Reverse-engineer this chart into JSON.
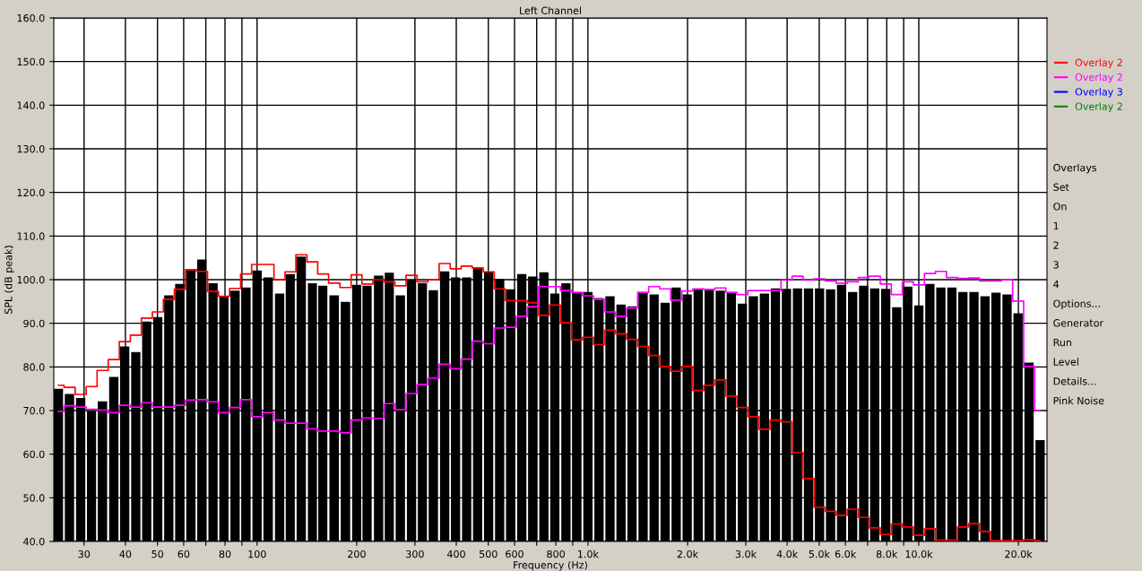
{
  "chart_data": {
    "type": "bar",
    "title": "Left Channel",
    "xlabel": "Frequency (Hz)",
    "ylabel": "SPL (dB peak)",
    "x": [
      25.1,
      27.1,
      29.3,
      31.6,
      34.1,
      36.9,
      39.8,
      43.0,
      46.4,
      50.1,
      54.1,
      58.4,
      63.1,
      68.1,
      73.6,
      79.4,
      85.8,
      92.6,
      100,
      108,
      117,
      126,
      136,
      147,
      158,
      171,
      185,
      200,
      215,
      233,
      251,
      271,
      293,
      316,
      341,
      369,
      398,
      430,
      464,
      501,
      541,
      584,
      631,
      681,
      736,
      794,
      858,
      926,
      1000,
      1080,
      1166,
      1259,
      1359,
      1468,
      1585,
      1711,
      1848,
      1995,
      2154,
      2326,
      2512,
      2712,
      2929,
      3162,
      3415,
      3687,
      3981,
      4299,
      4642,
      5012,
      5412,
      5843,
      6310,
      6813,
      7356,
      7943,
      8577,
      9261,
      10000,
      10800,
      11660,
      12590,
      13590,
      14680,
      15850,
      17110,
      18480,
      19950,
      21540,
      23260
    ],
    "series": [
      {
        "color": "#000000",
        "values": [
          75.0,
          73.8,
          72.9,
          69.9,
          72.1,
          77.7,
          84.7,
          83.4,
          90.4,
          91.4,
          96.4,
          99.0,
          102.2,
          104.6,
          99.2,
          96.2,
          97.5,
          98.2,
          102.1,
          100.5,
          96.8,
          101.3,
          105.3,
          99.2,
          98.6,
          96.4,
          94.9,
          98.8,
          98.6,
          100.9,
          101.6,
          96.4,
          100.0,
          99.2,
          97.6,
          101.9,
          100.5,
          100.5,
          102.6,
          101.8,
          100.2,
          97.8,
          101.3,
          100.7,
          101.7,
          96.8,
          99.2,
          97.1,
          97.2,
          95.8,
          96.2,
          94.3,
          93.9,
          96.9,
          96.6,
          94.7,
          98.2,
          96.6,
          97.7,
          97.9,
          97.5,
          97.1,
          94.5,
          96.2,
          96.8,
          98.0,
          97.9,
          98.0,
          98.0,
          98.0,
          97.8,
          98.8,
          97.2,
          98.6,
          98.0,
          97.9,
          93.7,
          98.4,
          94.1,
          99.0,
          98.2,
          98.2,
          97.2,
          97.2,
          96.2,
          97.0,
          96.6,
          92.3,
          81.0,
          63.2
        ]
      },
      {
        "type": "step",
        "name": "Overlay 2",
        "color": "#ff0000",
        "values": [
          75.8,
          75.3,
          73.7,
          75.5,
          79.2,
          81.7,
          85.8,
          87.3,
          91.2,
          92.6,
          95.5,
          97.8,
          102.3,
          101.9,
          97.3,
          96.2,
          98.0,
          101.3,
          103.5,
          103.5,
          100.0,
          101.8,
          105.7,
          104.1,
          101.3,
          99.2,
          98.2,
          101.1,
          99.0,
          100.0,
          99.5,
          98.6,
          101.0,
          99.5,
          100.0,
          103.7,
          102.5,
          103.1,
          102.7,
          101.8,
          97.9,
          95.2,
          95.2,
          94.7,
          91.8,
          94.2,
          90.1,
          86.2,
          86.8,
          85.1,
          88.4,
          87.6,
          86.3,
          84.7,
          82.6,
          80.1,
          79.0,
          80.1,
          74.6,
          75.8,
          77.0,
          73.3,
          70.7,
          68.6,
          65.7,
          67.8,
          67.4,
          60.4,
          54.4,
          47.8,
          46.9,
          46.0,
          47.4,
          45.5,
          43.1,
          41.6,
          44.0,
          43.3,
          41.4,
          42.9,
          40.3,
          40.3,
          43.3,
          44.1,
          42.3,
          40.2,
          40.2,
          40.2,
          40.4,
          40.2
        ]
      },
      {
        "type": "step",
        "name": "Overlay 2",
        "color": "#ff00ff",
        "values": [
          69.8,
          71.1,
          70.8,
          70.3,
          70.1,
          69.5,
          71.2,
          70.8,
          71.8,
          70.8,
          70.8,
          71.2,
          72.4,
          72.5,
          72.0,
          69.5,
          70.7,
          72.5,
          68.6,
          69.5,
          67.8,
          67.1,
          67.1,
          65.8,
          65.3,
          65.3,
          64.9,
          67.8,
          68.3,
          68.2,
          71.6,
          70.2,
          73.9,
          76.0,
          77.4,
          80.6,
          79.6,
          81.8,
          85.9,
          85.3,
          88.9,
          89.1,
          91.6,
          93.8,
          98.4,
          98.4,
          97.5,
          97.1,
          96.3,
          95.5,
          92.6,
          91.6,
          93.5,
          97.1,
          98.4,
          97.9,
          95.3,
          97.4,
          97.9,
          97.7,
          98.1,
          97.1,
          96.6,
          97.5,
          97.5,
          97.5,
          99.9,
          100.8,
          99.9,
          100.2,
          99.7,
          99.2,
          99.5,
          100.5,
          100.8,
          99.0,
          96.6,
          99.5,
          98.8,
          101.4,
          101.9,
          100.5,
          100.3,
          100.4,
          99.7,
          99.7,
          100.0,
          95.1,
          80.1,
          70.0
        ]
      },
      {
        "type": "step",
        "name": "Overlay 3",
        "color": "#0000ff",
        "values": [
          null,
          null,
          null,
          null,
          null,
          null,
          null,
          null,
          null,
          null,
          null,
          null,
          null,
          null,
          null,
          null,
          null,
          null,
          null,
          null,
          null,
          null,
          null,
          null,
          null,
          null,
          null,
          null,
          null,
          null,
          null,
          null,
          null,
          null,
          null,
          null,
          null,
          null,
          null,
          null,
          null,
          null,
          null,
          null,
          null,
          null,
          null,
          null,
          null,
          null,
          null,
          null,
          null,
          null,
          null,
          null,
          null,
          null,
          null,
          null,
          null,
          null,
          null,
          null,
          null,
          null,
          null,
          null,
          null,
          null,
          null,
          null,
          null,
          null,
          null,
          null,
          null,
          null,
          null,
          null,
          null,
          null,
          null,
          null,
          null,
          null,
          null,
          null,
          null,
          null
        ]
      },
      {
        "type": "step",
        "name": "Overlay 2",
        "color": "#008000",
        "values": [
          null,
          null,
          null,
          null,
          null,
          null,
          null,
          null,
          null,
          null,
          null,
          null,
          null,
          null,
          null,
          null,
          null,
          null,
          null,
          null,
          null,
          null,
          null,
          null,
          null,
          null,
          null,
          null,
          null,
          null,
          null,
          null,
          null,
          null,
          null,
          null,
          null,
          null,
          null,
          null,
          null,
          null,
          null,
          null,
          null,
          null,
          null,
          null,
          null,
          null,
          null,
          null,
          null,
          null,
          null,
          null,
          null,
          null,
          null,
          null,
          null,
          null,
          null,
          null,
          null,
          null,
          null,
          null,
          null,
          null,
          null,
          null,
          null,
          null,
          null,
          null,
          null,
          null,
          null,
          null,
          null,
          null,
          null,
          null,
          null,
          null,
          null,
          null,
          null,
          null
        ]
      }
    ],
    "log": "x",
    "grid": true,
    "legend": "right",
    "xlim": [
      24.3,
      24400
    ],
    "ylim": [
      40.0,
      160.0
    ],
    "xticks": [
      30,
      40,
      50,
      60,
      {
        "value": 70,
        "label": null
      },
      80,
      {
        "value": 90,
        "label": null
      },
      100,
      200,
      300,
      400,
      500,
      600,
      {
        "value": 700,
        "label": null
      },
      800,
      {
        "value": 900,
        "label": null
      },
      {
        "value": 1000,
        "label": "1.0k"
      },
      {
        "value": 2000,
        "label": "2.0k"
      },
      {
        "value": 3000,
        "label": "3.0k"
      },
      {
        "value": 4000,
        "label": "4.0k"
      },
      {
        "value": 5000,
        "label": "5.0k"
      },
      {
        "value": 6000,
        "label": "6.0k"
      },
      {
        "value": 7000,
        "label": null
      },
      {
        "value": 8000,
        "label": "8.0k"
      },
      {
        "value": 9000,
        "label": null
      },
      {
        "value": 10000,
        "label": "10.0k"
      },
      {
        "value": 20000,
        "label": "20.0k"
      }
    ],
    "yticks": [
      {
        "value": 40,
        "label": "40.0"
      },
      {
        "value": 50,
        "label": "50.0"
      },
      {
        "value": 60,
        "label": "60.0"
      },
      {
        "value": 70,
        "label": "70.0"
      },
      {
        "value": 80,
        "label": "80.0"
      },
      {
        "value": 90,
        "label": "90.0"
      },
      {
        "value": 100,
        "label": "100.0"
      },
      {
        "value": 110,
        "label": "110.0"
      },
      {
        "value": 120,
        "label": "120.0"
      },
      {
        "value": 130,
        "label": "130.0"
      },
      {
        "value": 140,
        "label": "140.0"
      },
      {
        "value": 150,
        "label": "150.0"
      },
      {
        "value": 160,
        "label": "160.0"
      }
    ],
    "annotations": [
      "Overlays",
      "Set",
      "On",
      "1",
      "2",
      "3",
      "4",
      "Options...",
      "Generator",
      "Run",
      "Level",
      "Details...",
      "Pink Noise"
    ]
  }
}
